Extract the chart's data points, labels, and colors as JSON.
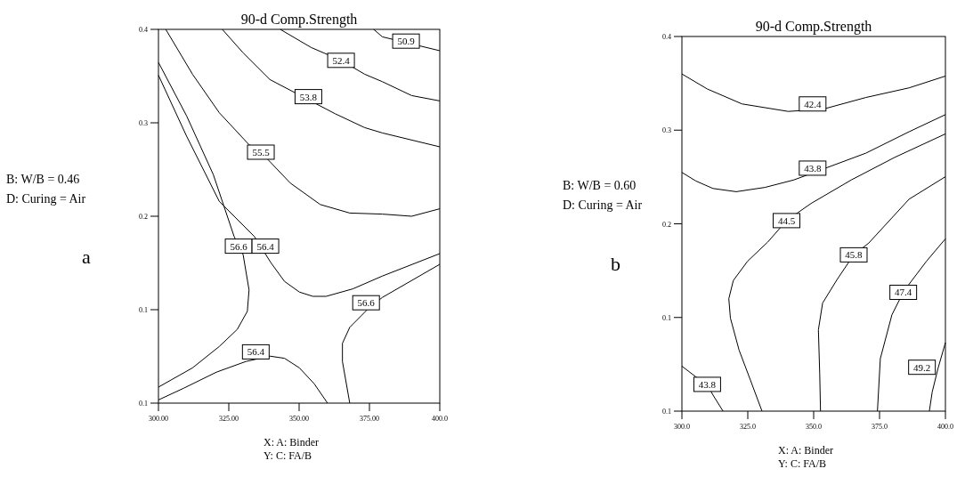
{
  "chart_data": [
    {
      "type": "line",
      "title": "90-d Comp.Strength",
      "xlabel": "X: A: Binder",
      "xlim": [
        300,
        400
      ],
      "ylim": [
        0.05,
        0.4
      ],
      "xticks": [
        {
          "value": 300,
          "label": "300.00"
        },
        {
          "value": 325,
          "label": "325.00"
        },
        {
          "value": 350,
          "label": "350.00"
        },
        {
          "value": 375,
          "label": "375.00"
        },
        {
          "value": 400,
          "label": "400.0"
        }
      ],
      "yticks": [
        {
          "value": 0.05,
          "label": "0.1"
        },
        {
          "value": 0.1375,
          "label": "0.1"
        },
        {
          "value": 0.225,
          "label": "0.2"
        },
        {
          "value": 0.3125,
          "label": "0.3"
        },
        {
          "value": 0.4,
          "label": "0.4"
        }
      ],
      "series": [
        {
          "color": "#000000",
          "x": [
            376.5,
            379.6,
            400
          ],
          "values": [
            0.4,
            0.393,
            0.38
          ]
        },
        {
          "color": "#000000",
          "x": [
            343.3,
            354.3,
            364.9,
            373.3,
            379.6,
            390,
            400
          ],
          "values": [
            0.4,
            0.383,
            0.371,
            0.358,
            0.351,
            0.338,
            0.333
          ]
        },
        {
          "color": "#000000",
          "x": [
            322.7,
            330.1,
            339.6,
            362.8,
            373.3,
            379.6,
            400
          ],
          "values": [
            0.4,
            0.378,
            0.353,
            0.321,
            0.308,
            0.303,
            0.29
          ]
        },
        {
          "color": "#000000",
          "x": [
            302.6,
            312.1,
            321.6,
            332.2,
            336.4,
            346.9,
            357.5,
            368,
            379.6,
            390,
            400
          ],
          "values": [
            0.4,
            0.358,
            0.322,
            0.292,
            0.285,
            0.256,
            0.236,
            0.228,
            0.227,
            0.225,
            0.232
          ]
        },
        {
          "color": "#000000",
          "x": [
            300,
            310,
            319.5,
            326.9,
            330.1,
            332.2,
            331.6,
            328,
            321.6,
            312.1,
            300
          ],
          "values": [
            0.369,
            0.319,
            0.264,
            0.206,
            0.189,
            0.156,
            0.136,
            0.119,
            0.103,
            0.083,
            0.065
          ]
        },
        {
          "color": "#000000",
          "x": [
            300,
            310,
            321.6,
            334.1,
            340.1,
            344.8,
            350.1,
            354.9,
            359.6,
            369.1,
            379.6,
            400
          ],
          "values": [
            0.357,
            0.3,
            0.239,
            0.206,
            0.181,
            0.164,
            0.154,
            0.15,
            0.15,
            0.157,
            0.169,
            0.19
          ]
        },
        {
          "color": "#000000",
          "x": [
            300,
            309,
            320.6,
            331.1,
            339.6,
            344.8,
            350.1,
            355.4,
            360.1
          ],
          "values": [
            0.053,
            0.064,
            0.079,
            0.089,
            0.094,
            0.092,
            0.083,
            0.068,
            0.05
          ]
        },
        {
          "color": "#000000",
          "x": [
            368,
            365.4,
            365.4,
            368,
            374.4,
            379.6,
            400
          ],
          "values": [
            0.05,
            0.089,
            0.106,
            0.121,
            0.138,
            0.149,
            0.18
          ]
        }
      ],
      "annotations": [
        "B: W/B = 0.46",
        "D: Curing = Air",
        "a",
        "Y: C: FA/B",
        {
          "text": "50.9",
          "x": 388,
          "y": 0.389
        },
        {
          "text": "52.4",
          "x": 364.9,
          "y": 0.371
        },
        {
          "text": "53.8",
          "x": 353.3,
          "y": 0.337
        },
        {
          "text": "55.5",
          "x": 336.4,
          "y": 0.285
        },
        {
          "text": "56.6",
          "x": 328.5,
          "y": 0.197
        },
        {
          "text": "56.4",
          "x": 338,
          "y": 0.197
        },
        {
          "text": "56.6",
          "x": 373.8,
          "y": 0.144
        },
        {
          "text": "56.4",
          "x": 334.6,
          "y": 0.098
        }
      ]
    },
    {
      "type": "line",
      "title": "90-d Comp.Strength",
      "xlabel": "X: A: Binder",
      "xlim": [
        300,
        400
      ],
      "ylim": [
        0.05,
        0.4
      ],
      "xticks": [
        {
          "value": 300,
          "label": "300.0"
        },
        {
          "value": 325,
          "label": "325.0"
        },
        {
          "value": 350,
          "label": "350.0"
        },
        {
          "value": 375,
          "label": "375.0"
        },
        {
          "value": 400,
          "label": "400.0"
        }
      ],
      "yticks": [
        {
          "value": 0.05,
          "label": "0.1"
        },
        {
          "value": 0.1375,
          "label": "0.1"
        },
        {
          "value": 0.225,
          "label": "0.2"
        },
        {
          "value": 0.3125,
          "label": "0.3"
        },
        {
          "value": 0.4,
          "label": "0.4"
        }
      ],
      "series": [
        {
          "color": "#000000",
          "x": [
            300,
            309.6,
            322.8,
            340.3,
            353.4,
            369.8,
            386.2,
            400
          ],
          "values": [
            0.365,
            0.351,
            0.337,
            0.33,
            0.332,
            0.343,
            0.352,
            0.363
          ]
        },
        {
          "color": "#000000",
          "x": [
            300,
            305.3,
            311.8,
            320.6,
            331.5,
            342.5,
            369.8,
            386.2,
            400
          ],
          "values": [
            0.273,
            0.265,
            0.258,
            0.255,
            0.259,
            0.266,
            0.291,
            0.311,
            0.327
          ]
        },
        {
          "color": "#000000",
          "x": [
            400,
            380.7,
            364.3,
            349,
            339.7,
            332.6,
            324.9,
            319.5,
            317.8,
            318.4,
            321.7,
            326,
            330.4
          ],
          "values": [
            0.309,
            0.287,
            0.266,
            0.244,
            0.228,
            0.208,
            0.19,
            0.172,
            0.155,
            0.137,
            0.107,
            0.079,
            0.05
          ]
        },
        {
          "color": "#000000",
          "x": [
            400,
            386.2,
            370.9,
            365.2,
            358.9,
            353.4,
            351.8,
            352.3,
            352.6
          ],
          "values": [
            0.269,
            0.248,
            0.207,
            0.196,
            0.173,
            0.151,
            0.126,
            0.085,
            0.05
          ]
        },
        {
          "color": "#000000",
          "x": [
            400,
            392.8,
            385.1,
            384,
            379.7,
            375.3,
            374.2
          ],
          "values": [
            0.211,
            0.19,
            0.165,
            0.161,
            0.14,
            0.099,
            0.05
          ]
        },
        {
          "color": "#000000",
          "x": [
            400,
            397.2,
            395,
            393.9
          ],
          "values": [
            0.114,
            0.09,
            0.068,
            0.05
          ]
        },
        {
          "color": "#000000",
          "x": [
            300,
            305.3,
            309.6,
            311.8,
            315.6
          ],
          "values": [
            0.092,
            0.082,
            0.075,
            0.065,
            0.05
          ]
        }
      ],
      "annotations": [
        "B: W/B = 0.60",
        "D: Curing = Air",
        "b",
        "Y: C: FA/B",
        {
          "text": "42.4",
          "x": 349.6,
          "y": 0.337
        },
        {
          "text": "43.8",
          "x": 349.6,
          "y": 0.277
        },
        {
          "text": "44.5",
          "x": 339.7,
          "y": 0.228
        },
        {
          "text": "45.8",
          "x": 365.2,
          "y": 0.196
        },
        {
          "text": "47.4",
          "x": 384,
          "y": 0.161
        },
        {
          "text": "49.2",
          "x": 391.1,
          "y": 0.091
        },
        {
          "text": "43.8",
          "x": 309.6,
          "y": 0.075
        }
      ]
    }
  ]
}
